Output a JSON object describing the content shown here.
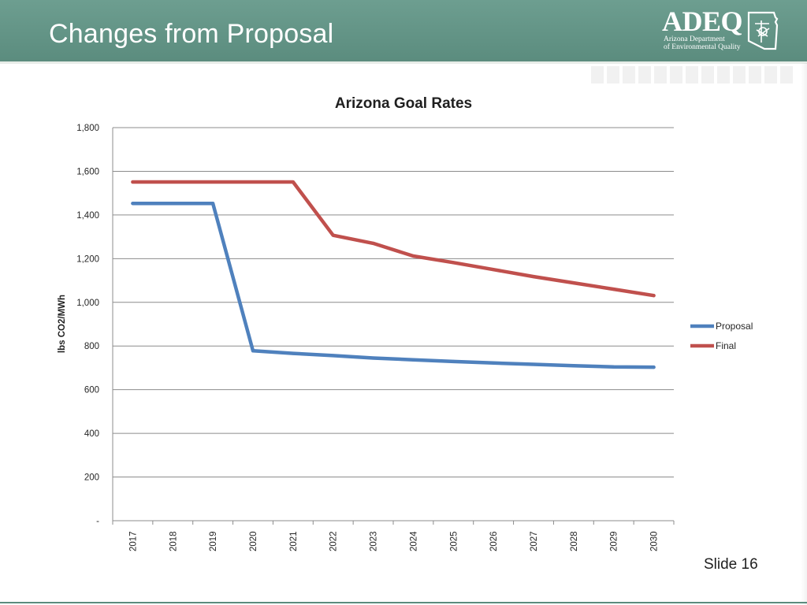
{
  "header": {
    "title": "Changes from Proposal"
  },
  "logo": {
    "name": "ADEQ",
    "line1": "Arizona Department",
    "line2": "of Environmental Quality"
  },
  "footer": {
    "slide_label": "Slide 16"
  },
  "colors": {
    "header_bg": "#5b8c7e",
    "proposal": "#4f81bd",
    "final": "#c0504d",
    "grid": "#8c8c8c"
  },
  "chart_data": {
    "type": "line",
    "title": "Arizona Goal Rates",
    "xlabel": "",
    "ylabel": "lbs CO2/MWh",
    "x": [
      "2017",
      "2018",
      "2019",
      "2020",
      "2021",
      "2022",
      "2023",
      "2024",
      "2025",
      "2026",
      "2027",
      "2028",
      "2029",
      "2030"
    ],
    "ylim": [
      0,
      1800
    ],
    "yticks": [
      0,
      200,
      400,
      600,
      800,
      1000,
      1200,
      1400,
      1600,
      1800
    ],
    "ytick_labels": [
      "-",
      "200",
      "400",
      "600",
      "800",
      "1,000",
      "1,200",
      "1,400",
      "1,600",
      "1,800"
    ],
    "grid": true,
    "legend_position": "right",
    "series": [
      {
        "name": "Proposal",
        "color": "#4f81bd",
        "values": [
          1453,
          1453,
          1453,
          778,
          766,
          756,
          745,
          737,
          729,
          722,
          716,
          710,
          704,
          703
        ]
      },
      {
        "name": "Final",
        "color": "#c0504d",
        "values": [
          1551,
          1551,
          1551,
          1551,
          1551,
          1307,
          1270,
          1212,
          1182,
          1150,
          1118,
          1089,
          1060,
          1031
        ]
      }
    ]
  }
}
